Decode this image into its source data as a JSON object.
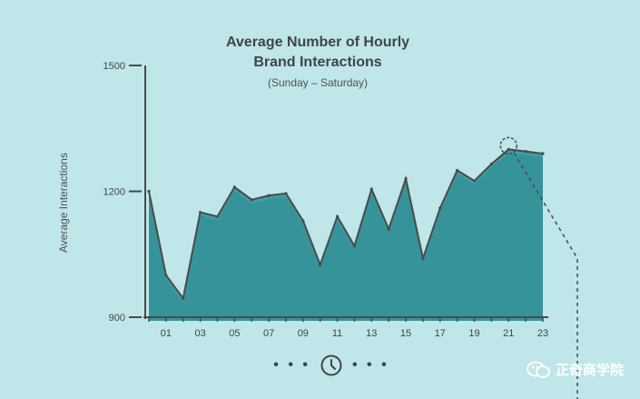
{
  "chart_data": {
    "type": "area",
    "title": "Average Number of Hourly\nBrand Interactions",
    "subtitle": "(Sunday – Saturday)",
    "ylabel": "Average Interactions",
    "xlabel": "",
    "ylim": [
      900,
      1500
    ],
    "xlim": [
      0,
      23
    ],
    "y_ticks": [
      "900",
      "1200",
      "1500"
    ],
    "x_tick_labels": [
      "01",
      "03",
      "05",
      "07",
      "09",
      "11",
      "13",
      "15",
      "17",
      "19",
      "21",
      "23"
    ],
    "x": [
      0,
      1,
      2,
      3,
      4,
      5,
      6,
      7,
      8,
      9,
      10,
      11,
      12,
      13,
      14,
      15,
      16,
      17,
      18,
      19,
      20,
      21,
      22,
      23
    ],
    "values": [
      1200,
      1000,
      945,
      1150,
      1140,
      1210,
      1180,
      1190,
      1195,
      1130,
      1025,
      1140,
      1070,
      1205,
      1110,
      1230,
      1040,
      1160,
      1250,
      1225,
      1265,
      1300,
      1295,
      1290
    ],
    "highlight_hour": 21,
    "colors": {
      "fill": "#3e9ea5",
      "fill_dark": "#2f8a92",
      "line": "#4a4a4a",
      "background": "#bfe6e9",
      "highlight": "#4a4a4a"
    }
  },
  "nav": {
    "left_dots": "• • •",
    "right_dots": "• • •",
    "icon": "clock-icon"
  },
  "watermark": {
    "text": "正奇商学院",
    "icon": "wechat-icon"
  }
}
